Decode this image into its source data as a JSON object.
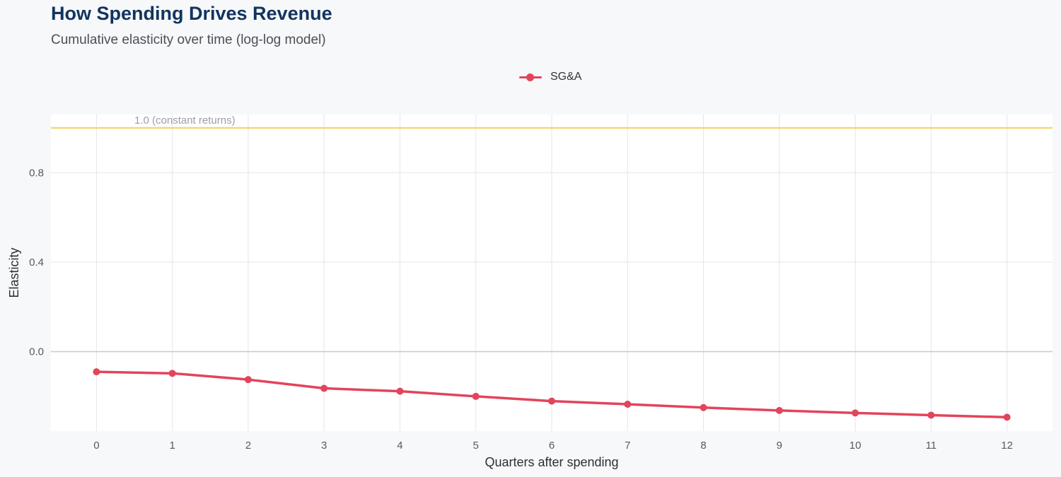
{
  "chart_data": {
    "type": "line",
    "title": "How Spending Drives Revenue",
    "subtitle": "Cumulative elasticity over time (log-log model)",
    "xlabel": "Quarters after spending",
    "ylabel": "Elasticity",
    "x": [
      0,
      1,
      2,
      3,
      4,
      5,
      6,
      7,
      8,
      9,
      10,
      11,
      12
    ],
    "x_tick_labels": [
      "0",
      "1",
      "2",
      "3",
      "4",
      "5",
      "6",
      "7",
      "8",
      "9",
      "10",
      "11",
      "12"
    ],
    "xlim": [
      -0.6,
      12.6
    ],
    "ylim": [
      -0.355,
      1.06
    ],
    "y_ticks": [
      0.0,
      0.4,
      0.8
    ],
    "y_tick_labels": [
      "0.0",
      "0.4",
      "0.8"
    ],
    "series": [
      {
        "name": "SG&A",
        "color": "#e2445c",
        "values": [
          -0.09,
          -0.097,
          -0.125,
          -0.164,
          -0.177,
          -0.2,
          -0.221,
          -0.235,
          -0.25,
          -0.263,
          -0.274,
          -0.284,
          -0.293
        ]
      }
    ],
    "reference_lines": [
      {
        "y": 1.0,
        "label": "1.0 (constant returns)",
        "color": "#f5d774"
      }
    ],
    "zero_line_color": "#c9cbcf",
    "grid": true,
    "legend_position": "top-center"
  }
}
